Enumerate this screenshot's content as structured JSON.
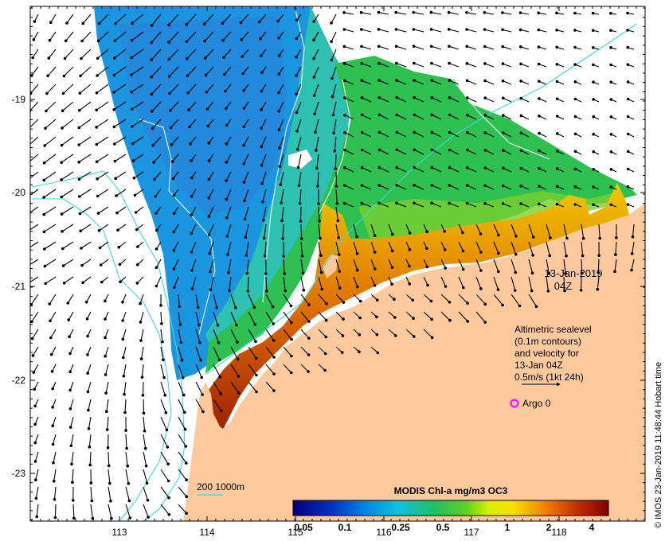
{
  "map": {
    "date_label": "13-Jan-2019",
    "time_label": "04Z",
    "legend_lines": [
      "Altimetric sealevel",
      "(0.1m contours)",
      "and velocity for",
      "13-Jan 04Z",
      "0.5m/s (1kt 24h)"
    ],
    "argo_label": "Argo 0",
    "bathy_label": "200  1000m",
    "credit": "© IMOS 23-Jan-2019 11:48:44 Hobart time",
    "colorbar": {
      "title": "MODIS Chl-a mg/m3 OC3",
      "ticks": [
        "0.05",
        "0.1",
        "0.25",
        "0.5",
        "1",
        "2",
        "4"
      ]
    },
    "lon_ticks": [
      "113",
      "114",
      "115",
      "116",
      "117",
      "118"
    ],
    "lat_ticks": [
      "-19",
      "-20",
      "-21",
      "-22",
      "-23"
    ],
    "colors": {
      "land": "#fdc99d",
      "chl_low": "#1a8ce6",
      "chl_mid": "#27c05a",
      "chl_high": "#e07a1a",
      "argo": "#ff00ff",
      "bathy": "#40d8e0"
    }
  }
}
